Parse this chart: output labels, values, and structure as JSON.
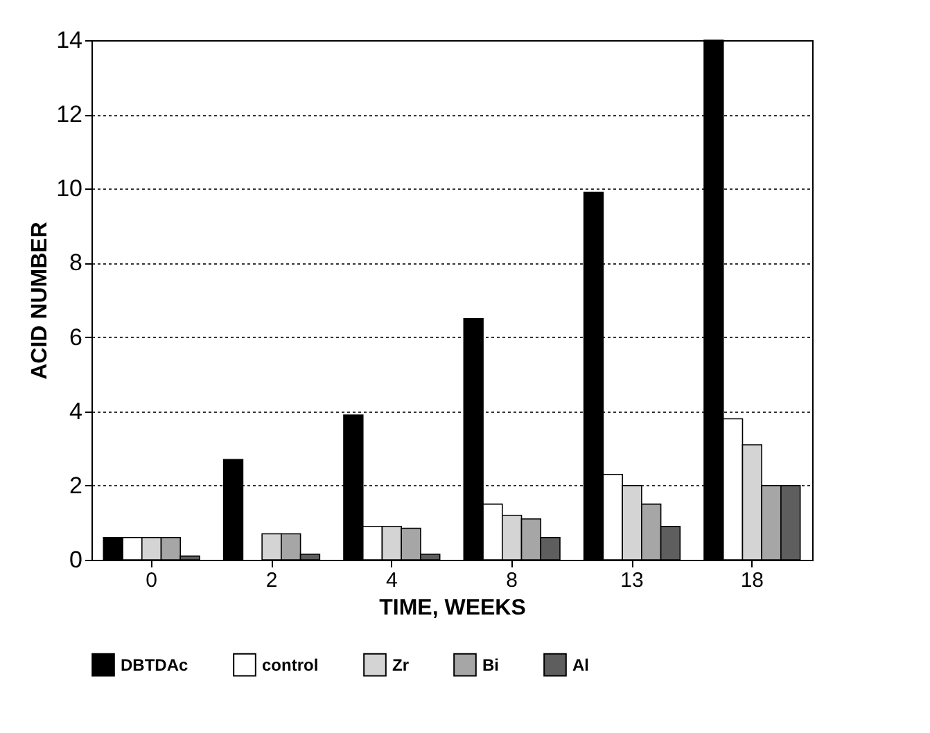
{
  "chart_data": {
    "type": "bar",
    "xlabel": "TIME, WEEKS",
    "ylabel": "ACID NUMBER",
    "categories": [
      "0",
      "2",
      "4",
      "8",
      "13",
      "18"
    ],
    "series": [
      {
        "name": "DBTDAc",
        "color": "#000000",
        "values": [
          0.6,
          2.7,
          3.9,
          6.5,
          9.9,
          14
        ]
      },
      {
        "name": "control",
        "color": "#ffffff",
        "values": [
          0.6,
          null,
          0.9,
          1.5,
          2.3,
          3.8
        ]
      },
      {
        "name": "Zr",
        "color": "#d4d4d4",
        "values": [
          0.6,
          0.7,
          0.9,
          1.2,
          2.0,
          3.1
        ]
      },
      {
        "name": "Bi",
        "color": "#a6a6a6",
        "values": [
          0.6,
          0.7,
          0.85,
          1.1,
          1.5,
          2.0
        ]
      },
      {
        "name": "Al",
        "color": "#5e5e5e",
        "values": [
          0.1,
          0.15,
          0.15,
          0.6,
          0.9,
          2.0
        ]
      }
    ],
    "ylim": [
      0,
      14
    ],
    "yticks": [
      0,
      2,
      4,
      6,
      8,
      10,
      12,
      14
    ],
    "grid": "y",
    "legend": "bottom"
  }
}
